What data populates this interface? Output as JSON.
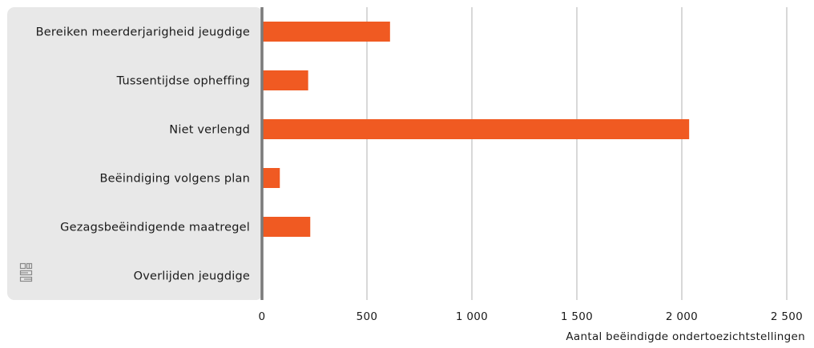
{
  "chart_data": {
    "type": "bar",
    "orientation": "horizontal",
    "categories": [
      "Bereiken meerderjarigheid jeugdige",
      "Tussentijdse opheffing",
      "Niet verlengd",
      "Beëindiging volgens plan",
      "Gezagsbeëindigende maatregel",
      "Overlijden jeugdige"
    ],
    "values": [
      610,
      220,
      2035,
      85,
      230,
      0
    ],
    "xlim": [
      0,
      2500
    ],
    "xticks": [
      0,
      500,
      1000,
      1500,
      2000,
      2500
    ],
    "xtick_labels": [
      "0",
      "500",
      "1 000",
      "1 500",
      "2 000",
      "2 500"
    ],
    "xlabel": "Aantal beëindigde ondertoezichtstellingen",
    "grid": "vertical",
    "bar_color": "#f05a22",
    "label_panel_color": "#e8e8e8",
    "axis_line_color": "#7a7a7a",
    "gridline_color": "#b0b0b0",
    "logo_icon": "cbs-logo-icon"
  }
}
